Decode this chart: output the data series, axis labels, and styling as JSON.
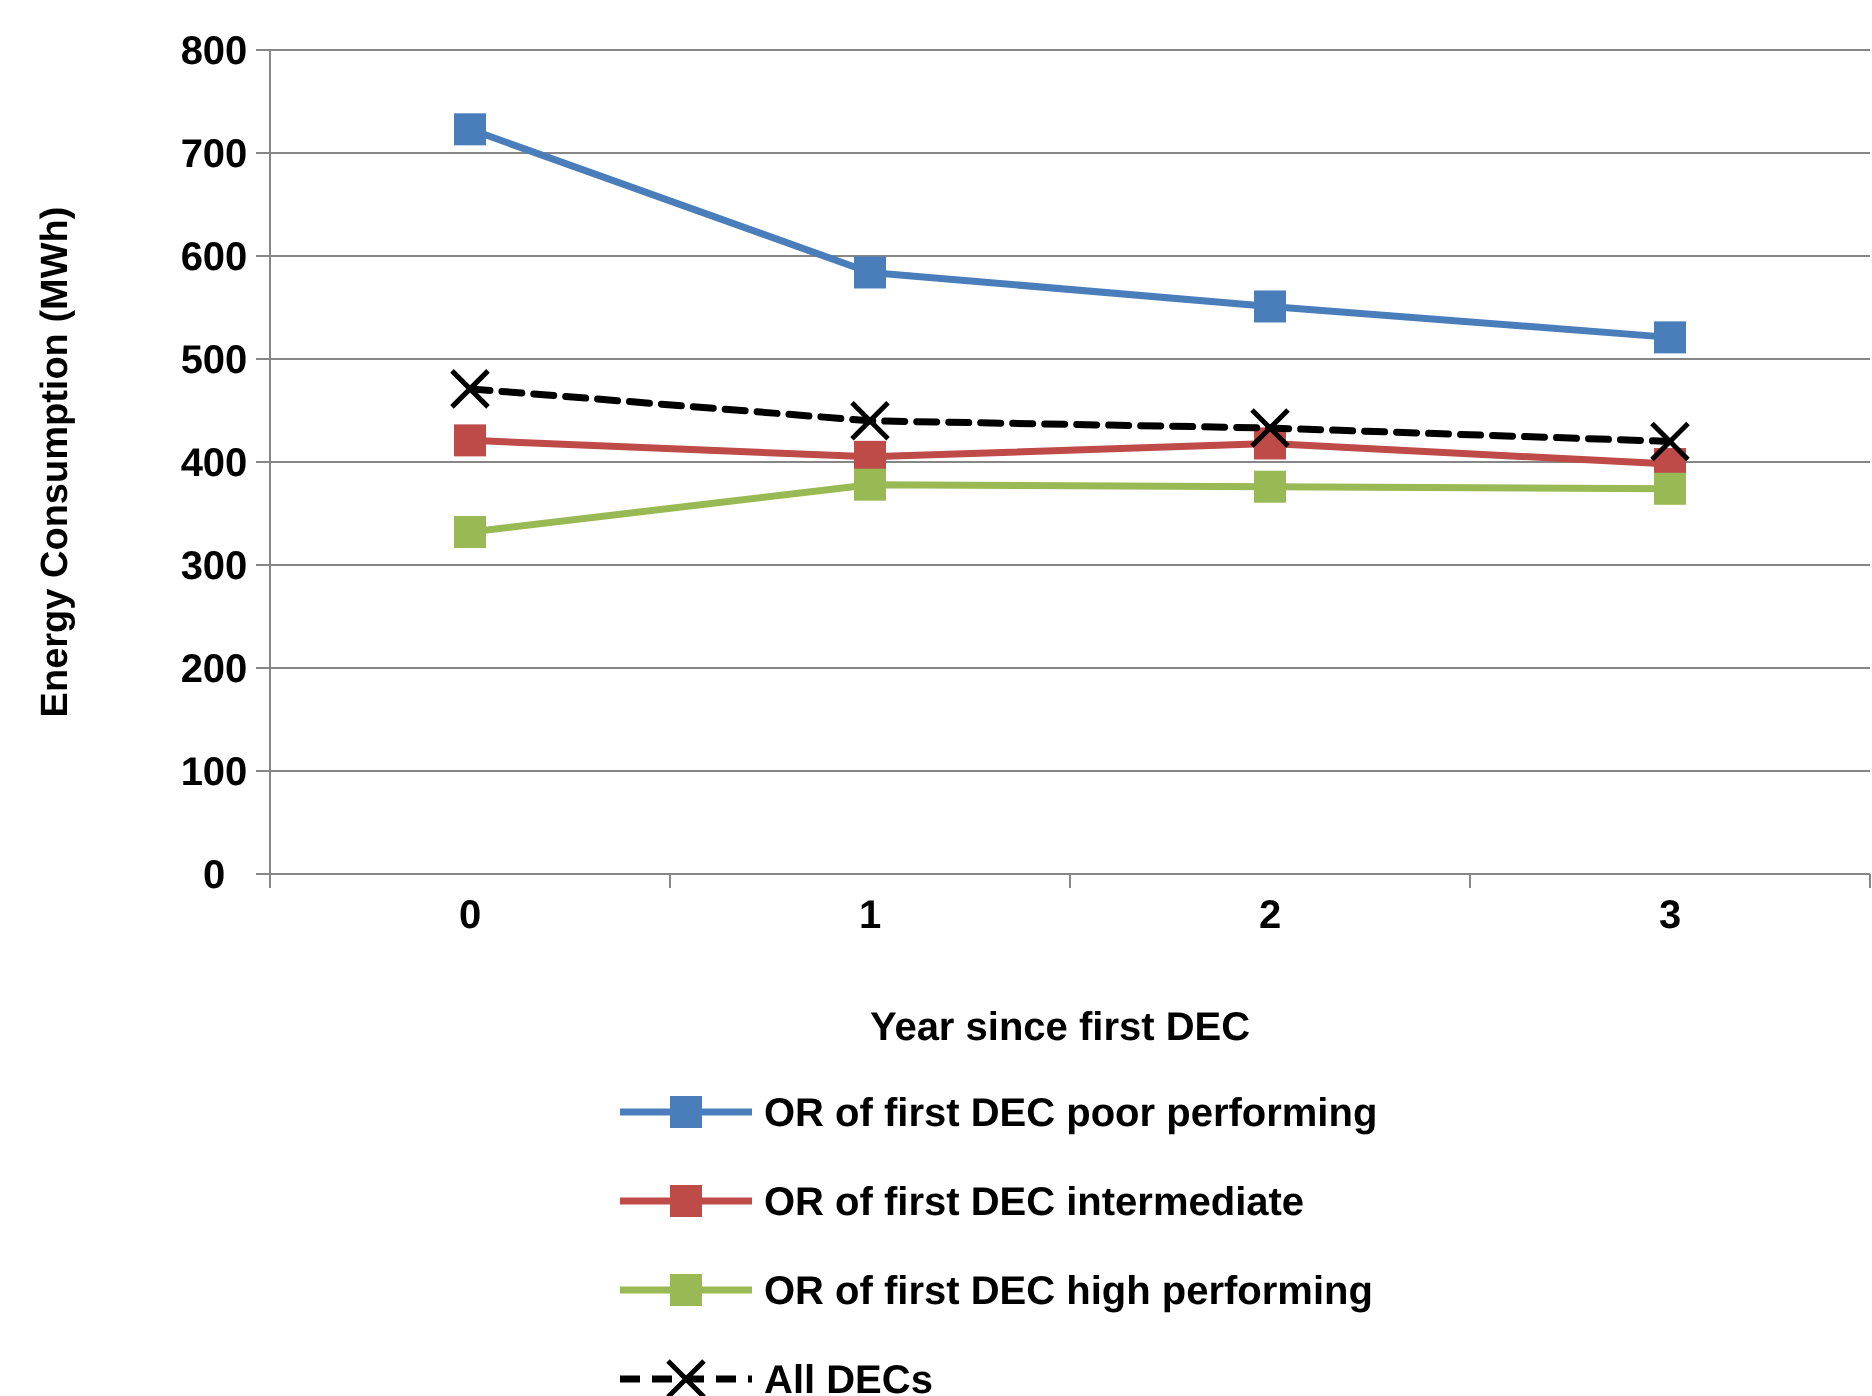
{
  "chart_data": {
    "type": "line",
    "xlabel": "Year since first DEC",
    "ylabel": "Energy Consumption (MWh)",
    "categories": [
      "0",
      "1",
      "2",
      "3"
    ],
    "ylim": [
      0,
      800
    ],
    "yticks": [
      0,
      100,
      200,
      300,
      400,
      500,
      600,
      700,
      800
    ],
    "grid": "y",
    "legend": "bottom",
    "series": [
      {
        "name": "OR of first DEC poor performing",
        "color": "#4a7ebb",
        "values": [
          723,
          584,
          551,
          521
        ],
        "marker": "square"
      },
      {
        "name": "OR of first DEC intermediate",
        "color": "#be4b48",
        "values": [
          421,
          405,
          418,
          398
        ],
        "marker": "square"
      },
      {
        "name": "OR of first DEC high performing",
        "color": "#98b954",
        "values": [
          332,
          378,
          376,
          374
        ],
        "marker": "square"
      },
      {
        "name": "All DECs",
        "color": "#000000",
        "values": [
          471,
          440,
          433,
          420
        ],
        "marker": "cross",
        "line_style": "dashed"
      }
    ]
  }
}
